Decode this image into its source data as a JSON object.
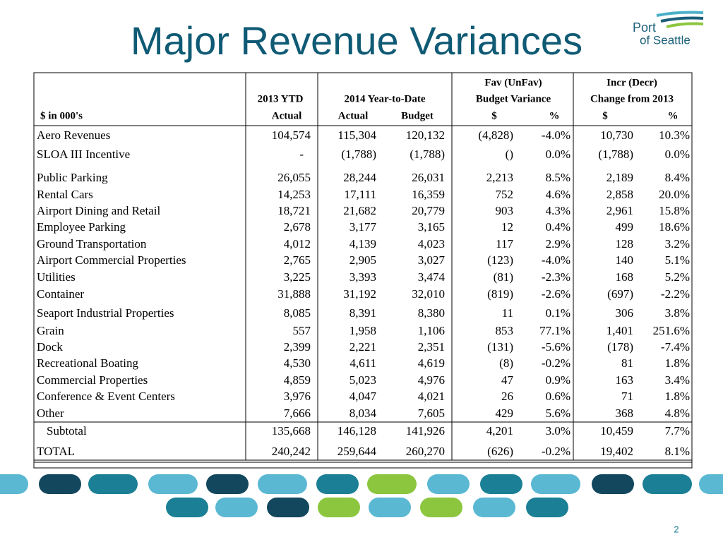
{
  "header": {
    "title": "Major Revenue Variances",
    "logo_line1": "Port",
    "logo_line2": "of Seattle"
  },
  "table": {
    "header_rows": [
      [
        "Fav (UnFav)",
        "Incr (Decr)"
      ],
      [
        "2013 YTD",
        "2014 Year-to-Date",
        "Budget Variance",
        "Change from 2013"
      ],
      [
        "$ in 000's",
        "Actual",
        "Actual",
        "Budget",
        "$",
        "%",
        "$",
        "%"
      ]
    ],
    "rows": [
      {
        "label": "Aero Revenues",
        "values": [
          "104,574",
          "115,304",
          "120,132",
          "(4,828)",
          "-4.0%",
          "10,730",
          "10.3%"
        ]
      },
      {
        "label": "SLOA III Incentive",
        "values": [
          "-",
          "(1,788)",
          "(1,788)",
          "()",
          "0.0%",
          "(1,788)",
          "0.0%"
        ]
      },
      {
        "label": "Public Parking",
        "values": [
          "26,055",
          "28,244",
          "26,031",
          "2,213",
          "8.5%",
          "2,189",
          "8.4%"
        ]
      },
      {
        "label": "Rental Cars",
        "values": [
          "14,253",
          "17,111",
          "16,359",
          "752",
          "4.6%",
          "2,858",
          "20.0%"
        ]
      },
      {
        "label": "Airport Dining and Retail",
        "values": [
          "18,721",
          "21,682",
          "20,779",
          "903",
          "4.3%",
          "2,961",
          "15.8%"
        ]
      },
      {
        "label": "Employee Parking",
        "values": [
          "2,678",
          "3,177",
          "3,165",
          "12",
          "0.4%",
          "499",
          "18.6%"
        ]
      },
      {
        "label": "Ground Transportation",
        "values": [
          "4,012",
          "4,139",
          "4,023",
          "117",
          "2.9%",
          "128",
          "3.2%"
        ]
      },
      {
        "label": "Airport Commercial Properties",
        "values": [
          "2,765",
          "2,905",
          "3,027",
          "(123)",
          "-4.0%",
          "140",
          "5.1%"
        ]
      },
      {
        "label": "Utilities",
        "values": [
          "3,225",
          "3,393",
          "3,474",
          "(81)",
          "-2.3%",
          "168",
          "5.2%"
        ]
      },
      {
        "label": "Container",
        "values": [
          "31,888",
          "31,192",
          "32,010",
          "(819)",
          "-2.6%",
          "(697)",
          "-2.2%"
        ]
      },
      {
        "label": "Seaport Industrial Properties",
        "values": [
          "8,085",
          "8,391",
          "8,380",
          "11",
          "0.1%",
          "306",
          "3.8%"
        ]
      },
      {
        "label": "Grain",
        "values": [
          "557",
          "1,958",
          "1,106",
          "853",
          "77.1%",
          "1,401",
          "251.6%"
        ]
      },
      {
        "label": "Dock",
        "values": [
          "2,399",
          "2,221",
          "2,351",
          "(131)",
          "-5.6%",
          "(178)",
          "-7.4%"
        ]
      },
      {
        "label": "Recreational Boating",
        "values": [
          "4,530",
          "4,611",
          "4,619",
          "(8)",
          "-0.2%",
          "81",
          "1.8%"
        ]
      },
      {
        "label": "Commercial Properties",
        "values": [
          "4,859",
          "5,023",
          "4,976",
          "47",
          "0.9%",
          "163",
          "3.4%"
        ]
      },
      {
        "label": "Conference & Event Centers",
        "values": [
          "3,976",
          "4,047",
          "4,021",
          "26",
          "0.6%",
          "71",
          "1.8%"
        ]
      },
      {
        "label": "Other",
        "values": [
          "7,666",
          "8,034",
          "7,605",
          "429",
          "5.6%",
          "368",
          "4.8%"
        ]
      },
      {
        "label": "Subtotal",
        "values": [
          "135,668",
          "146,128",
          "141,926",
          "4,201",
          "3.0%",
          "10,459",
          "7.7%"
        ]
      },
      {
        "label": "TOTAL",
        "values": [
          "240,242",
          "259,644",
          "260,270",
          "(626)",
          "-0.2%",
          "19,402",
          "8.1%"
        ]
      }
    ]
  },
  "footer": {
    "page_number": "2"
  }
}
